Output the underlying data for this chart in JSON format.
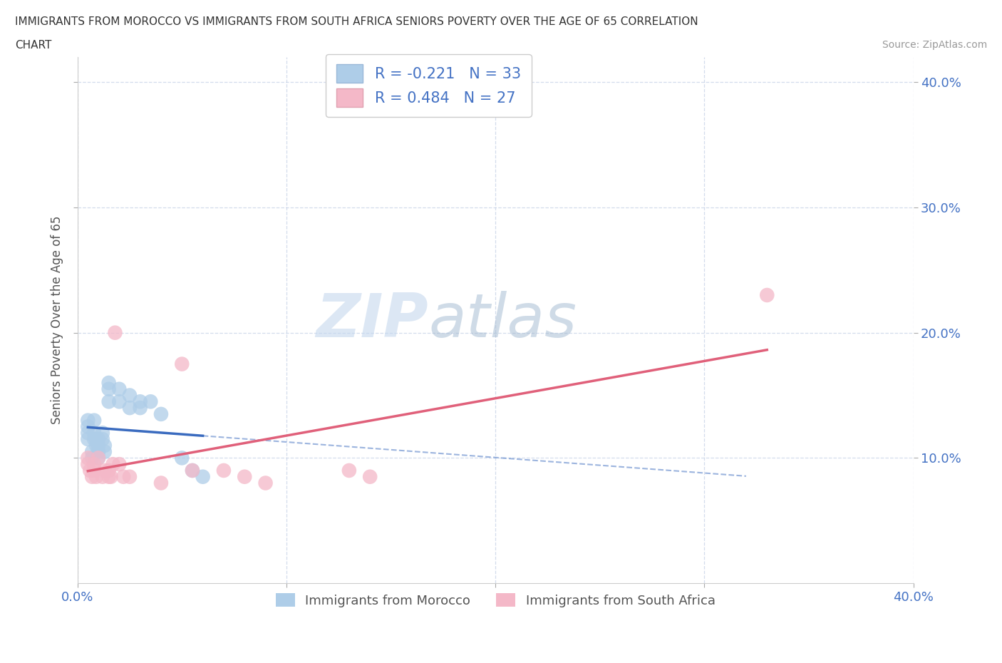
{
  "title_line1": "IMMIGRANTS FROM MOROCCO VS IMMIGRANTS FROM SOUTH AFRICA SENIORS POVERTY OVER THE AGE OF 65 CORRELATION",
  "title_line2": "CHART",
  "source_text": "Source: ZipAtlas.com",
  "ylabel": "Seniors Poverty Over the Age of 65",
  "xlim": [
    0.0,
    0.4
  ],
  "ylim": [
    0.0,
    0.42
  ],
  "yticks": [
    0.1,
    0.2,
    0.3,
    0.4
  ],
  "xticks": [
    0.0,
    0.1,
    0.2,
    0.3,
    0.4
  ],
  "ytick_labels": [
    "10.0%",
    "20.0%",
    "30.0%",
    "40.0%"
  ],
  "xtick_labels": [
    "0.0%",
    "",
    "",
    "",
    "40.0%"
  ],
  "morocco_R": -0.221,
  "morocco_N": 33,
  "southafrica_R": 0.484,
  "southafrica_N": 27,
  "morocco_color": "#aecde8",
  "morocco_line_color": "#3a6bbf",
  "southafrica_color": "#f4b8c8",
  "southafrica_line_color": "#e0607a",
  "watermark_zip": "ZIP",
  "watermark_atlas": "atlas",
  "legend_label1": "Immigrants from Morocco",
  "legend_label2": "Immigrants from South Africa",
  "morocco_x": [
    0.005,
    0.005,
    0.005,
    0.005,
    0.007,
    0.007,
    0.008,
    0.008,
    0.008,
    0.009,
    0.009,
    0.01,
    0.01,
    0.01,
    0.01,
    0.012,
    0.012,
    0.013,
    0.013,
    0.015,
    0.015,
    0.015,
    0.02,
    0.02,
    0.025,
    0.025,
    0.03,
    0.03,
    0.035,
    0.04,
    0.05,
    0.055,
    0.06
  ],
  "morocco_y": [
    0.115,
    0.12,
    0.125,
    0.13,
    0.1,
    0.105,
    0.115,
    0.12,
    0.13,
    0.11,
    0.115,
    0.105,
    0.11,
    0.115,
    0.1,
    0.115,
    0.12,
    0.105,
    0.11,
    0.145,
    0.155,
    0.16,
    0.145,
    0.155,
    0.14,
    0.15,
    0.14,
    0.145,
    0.145,
    0.135,
    0.1,
    0.09,
    0.085
  ],
  "southafrica_x": [
    0.005,
    0.005,
    0.006,
    0.007,
    0.008,
    0.008,
    0.009,
    0.01,
    0.012,
    0.013,
    0.015,
    0.015,
    0.016,
    0.017,
    0.018,
    0.02,
    0.022,
    0.025,
    0.04,
    0.05,
    0.055,
    0.07,
    0.08,
    0.09,
    0.13,
    0.14,
    0.33
  ],
  "southafrica_y": [
    0.095,
    0.1,
    0.09,
    0.085,
    0.09,
    0.095,
    0.085,
    0.1,
    0.085,
    0.09,
    0.085,
    0.09,
    0.085,
    0.095,
    0.2,
    0.095,
    0.085,
    0.085,
    0.08,
    0.175,
    0.09,
    0.09,
    0.085,
    0.08,
    0.09,
    0.085,
    0.23
  ]
}
